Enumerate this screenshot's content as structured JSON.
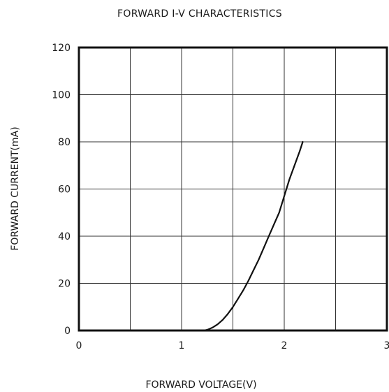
{
  "chart_data": {
    "type": "line",
    "title": "FORWARD I-V CHARACTERISTICS",
    "xlabel": "FORWARD VOLTAGE(V)",
    "ylabel": "FORWARD CURRENT(mA)",
    "xlim": [
      0,
      3
    ],
    "ylim": [
      0,
      120
    ],
    "x_ticks": [
      0,
      1,
      2,
      3
    ],
    "y_ticks": [
      0,
      20,
      40,
      60,
      80,
      100,
      120
    ],
    "x_tick_labels": [
      "0",
      "1",
      "2",
      "3"
    ],
    "y_tick_labels": [
      "0",
      "20",
      "40",
      "60",
      "80",
      "100",
      "120"
    ],
    "grid": true,
    "x_grid_step": 0.5,
    "y_grid_step": 20,
    "series": [
      {
        "color": "#111111",
        "x": [
          1.22,
          1.25,
          1.3,
          1.35,
          1.4,
          1.45,
          1.5,
          1.55,
          1.6,
          1.65,
          1.7,
          1.75,
          1.8,
          1.85,
          1.9,
          1.95,
          2.0,
          2.05,
          2.1,
          2.15,
          2.18
        ],
        "y": [
          0,
          0.3,
          1.2,
          2.6,
          4.5,
          7,
          10,
          13.5,
          17,
          21,
          25.5,
          30,
          35,
          40,
          45,
          50,
          57,
          64,
          70,
          76,
          80
        ]
      }
    ]
  }
}
